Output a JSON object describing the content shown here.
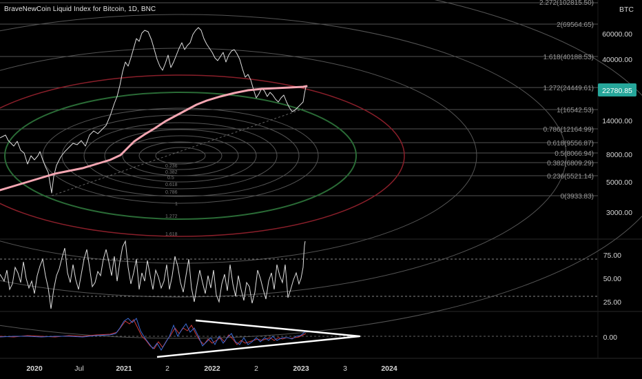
{
  "header": {
    "title": "BraveNewCoin Liquid Index for Bitcoin, 1D, BNC",
    "currency": "BTC",
    "last_price": "22780.85"
  },
  "price_axis": {
    "labels": [
      "60000.00",
      "40000.00",
      "14000.00",
      "8000.00",
      "5000.00",
      "3000.00"
    ]
  },
  "rsi_axis": {
    "labels": [
      "75.00",
      "50.00",
      "25.00"
    ]
  },
  "macd_axis": {
    "labels": [
      "0.00"
    ]
  },
  "time_axis": {
    "labels": [
      "2020",
      "Jul",
      "2021",
      "2",
      "2022",
      "2",
      "2023",
      "3",
      "2024"
    ]
  },
  "fib_levels": [
    {
      "label": "2.272(102815.50)"
    },
    {
      "label": "2(69564.65)"
    },
    {
      "label": "1.618(40188.53)"
    },
    {
      "label": "1.272(24449.61)"
    },
    {
      "label": "1(16542.53)"
    },
    {
      "label": "0.786(12164.99)"
    },
    {
      "label": "0.618(9556.87)"
    },
    {
      "label": "0.5(8066.94)"
    },
    {
      "label": "0.382(6809.29)"
    },
    {
      "label": "0.236(5521.14)"
    },
    {
      "label": "0(3933.83)"
    }
  ],
  "fib_circle_labels": [
    "0.236",
    "0.382",
    "0.5",
    "0.618",
    "0.786",
    "1",
    "1.272",
    "1.618"
  ],
  "colors": {
    "background": "#000000",
    "price_line": "#e0e0e0",
    "moving_average": "#f4a6b2",
    "circle_red": "#8a1f2a",
    "circle_green": "#2a6b36",
    "circle_grey": "#5a5a5a",
    "last_price_badge": "#26a69a",
    "macd_line": "#3b6bd6",
    "signal_line": "#d23a3a"
  }
}
